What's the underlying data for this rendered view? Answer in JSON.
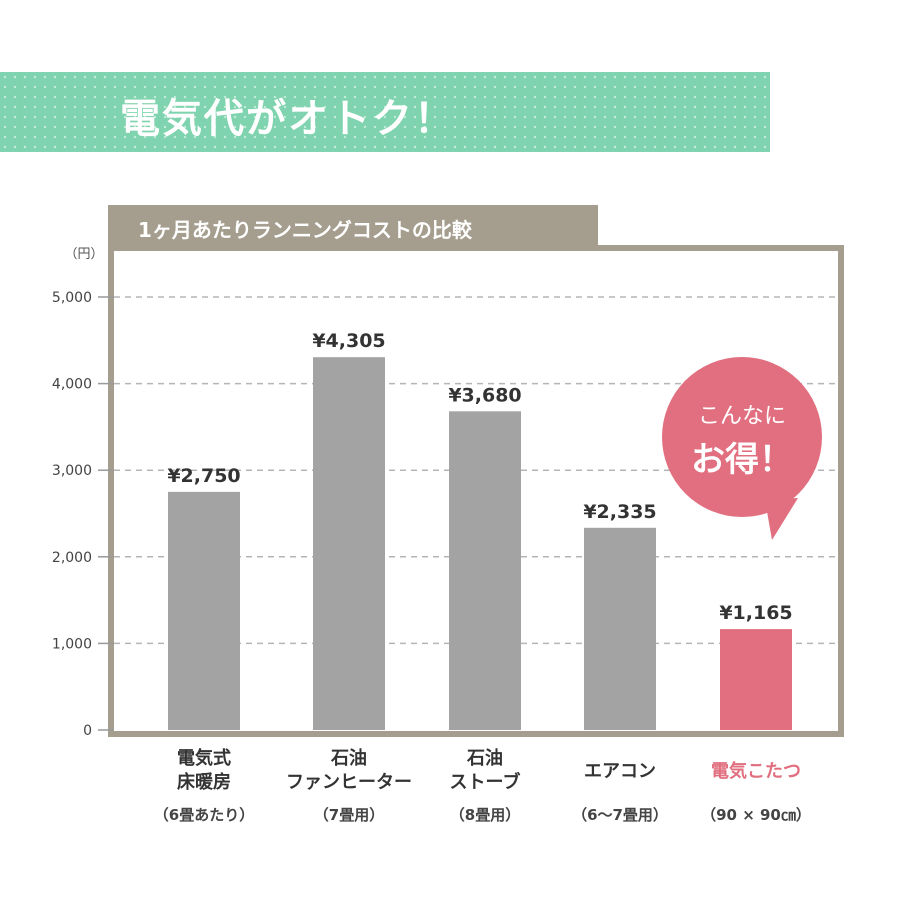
{
  "banner": {
    "title": "電気代がオトク！"
  },
  "chart_tab": {
    "title": "1ヶ月あたりランニングコストの比較"
  },
  "bubble": {
    "line1": "こんなに",
    "line2": "お得！"
  },
  "colors": {
    "gray_bar": "#a3a3a3",
    "highlight_bar": "#e16f7f",
    "banner": "#7fd3ae",
    "frame": "#a59e8f"
  },
  "chart_data": {
    "type": "bar",
    "title": "1ヶ月あたりランニングコストの比較",
    "ylabel": "（円）",
    "ylim": [
      0,
      5000
    ],
    "yticks": [
      0,
      1000,
      2000,
      3000,
      4000,
      5000
    ],
    "ytick_labels": [
      "0",
      "1,000",
      "2,000",
      "3,000",
      "4,000",
      "5,000"
    ],
    "grid": true,
    "categories": [
      {
        "lines": [
          "電気式",
          "床暖房"
        ],
        "note": "（6畳あたり）"
      },
      {
        "lines": [
          "石油",
          "ファンヒーター"
        ],
        "note": "（7畳用）"
      },
      {
        "lines": [
          "石油",
          "ストーブ"
        ],
        "note": "（8畳用）"
      },
      {
        "lines": [
          "エアコン"
        ],
        "note": "（6〜7畳用）"
      },
      {
        "lines": [
          "電気こたつ"
        ],
        "note": "（90 × 90㎝）"
      }
    ],
    "values": [
      2750,
      4305,
      3680,
      2335,
      1165
    ],
    "value_labels": [
      "¥2,750",
      "¥4,305",
      "¥3,680",
      "¥2,335",
      "¥1,165"
    ],
    "highlight_index": 4
  }
}
